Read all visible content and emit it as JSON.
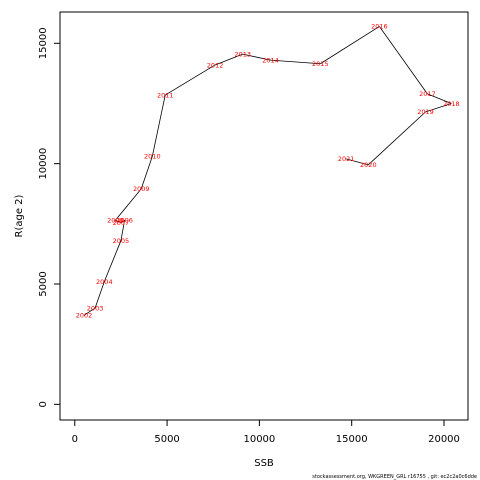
{
  "chart_data": {
    "type": "line",
    "xlabel": "SSB",
    "ylabel": "R(age 2)",
    "xlim": [
      -800,
      21300
    ],
    "ylim": [
      -650,
      16300
    ],
    "xticks": [
      0,
      5000,
      10000,
      15000,
      20000
    ],
    "yticks": [
      0,
      5000,
      10000,
      15000
    ],
    "line_color": "#000000",
    "label_color": "#ff0000",
    "points": [
      {
        "year": "2002",
        "x": 500,
        "y": 3700
      },
      {
        "year": "2003",
        "x": 1100,
        "y": 4000
      },
      {
        "year": "2004",
        "x": 1600,
        "y": 5100
      },
      {
        "year": "2005",
        "x": 2500,
        "y": 6800
      },
      {
        "year": "2006",
        "x": 2700,
        "y": 7650
      },
      {
        "year": "2007",
        "x": 2500,
        "y": 7550
      },
      {
        "year": "2008",
        "x": 2200,
        "y": 7650
      },
      {
        "year": "2009",
        "x": 3600,
        "y": 8950
      },
      {
        "year": "2010",
        "x": 4200,
        "y": 10300
      },
      {
        "year": "2011",
        "x": 4900,
        "y": 12850
      },
      {
        "year": "2012",
        "x": 7600,
        "y": 14100
      },
      {
        "year": "2013",
        "x": 9100,
        "y": 14550
      },
      {
        "year": "2014",
        "x": 10600,
        "y": 14300
      },
      {
        "year": "2015",
        "x": 13300,
        "y": 14150
      },
      {
        "year": "2016",
        "x": 16500,
        "y": 15700
      },
      {
        "year": "2017",
        "x": 19100,
        "y": 12900
      },
      {
        "year": "2018",
        "x": 20400,
        "y": 12500
      },
      {
        "year": "2019",
        "x": 19000,
        "y": 12150
      },
      {
        "year": "2020",
        "x": 15900,
        "y": 9950
      },
      {
        "year": "2021",
        "x": 14700,
        "y": 10200
      }
    ]
  },
  "footer": "stockassessment.org,  WKGREEN_GRL r16755 ,  git: ec2c2a0c6dde"
}
